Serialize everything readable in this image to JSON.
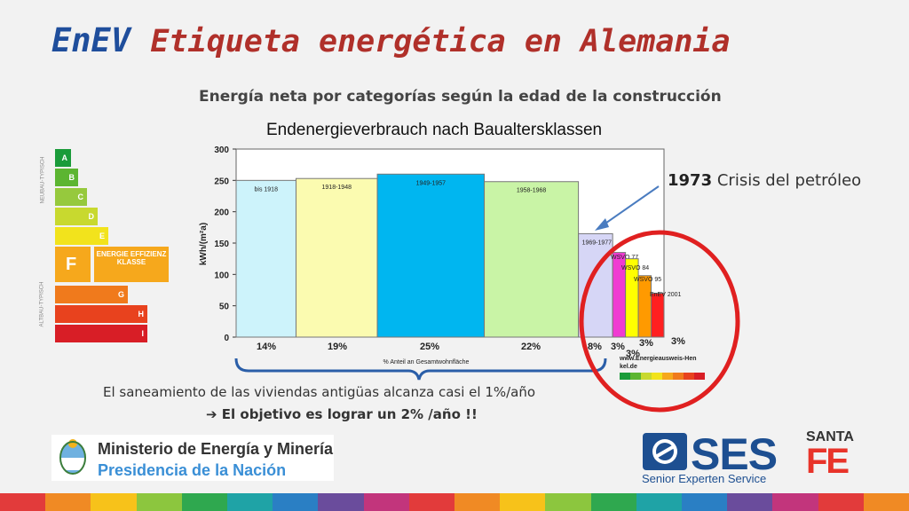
{
  "slide": {
    "title_part1": "EnEV",
    "title_part2": "Etiqueta energética en Alemania",
    "subtitle": "Energía neta por categorías según la edad de la construcción",
    "note_line1": "El saneamiento de las viviendas antigüas alcanza casi el 1%/año",
    "note_line2": "➔ El objetivo es lograr un 2% /año !!",
    "crisis_year": "1973",
    "crisis_text": "Crisis del petróleo"
  },
  "energy_label": {
    "classes": [
      "A",
      "B",
      "C",
      "D",
      "E",
      "F",
      "G",
      "H",
      "I"
    ],
    "colors": [
      "#1a9b3a",
      "#5cb531",
      "#96c93d",
      "#c8d92f",
      "#f2e31c",
      "#f6a81c",
      "#f07a1c",
      "#e8421e",
      "#d81e26"
    ],
    "caption": "ENERGIE EFFIZIENZ KLASSE",
    "side_top": "NEUBAU-TYPISCH",
    "side_bottom": "ALTBAU-TYPISCH"
  },
  "chart_data": {
    "type": "bar",
    "title": "Endenergieverbrauch nach Baualtersklassen",
    "ylabel": "kWh/(m²a)",
    "xlabel": "% Anteil an Gesamtwohnfläche",
    "ylim": [
      0,
      300
    ],
    "yticks": [
      0,
      50,
      100,
      150,
      200,
      250,
      300
    ],
    "bars": [
      {
        "label": "bis 1918",
        "value": 250,
        "share": 14,
        "share_label": "14%",
        "color": "#cdf3fb"
      },
      {
        "label": "1918-1948",
        "value": 253,
        "share": 19,
        "share_label": "19%",
        "color": "#fbfbb0"
      },
      {
        "label": "1949-1957",
        "value": 260,
        "share": 25,
        "share_label": "25%",
        "color": "#00b6f0"
      },
      {
        "label": "1958-1968",
        "value": 248,
        "share": 22,
        "share_label": "22%",
        "color": "#c9f4a6"
      },
      {
        "label": "1969-1977",
        "value": 165,
        "share": 8,
        "share_label": "8%",
        "color": "#d6d6f6"
      },
      {
        "label": "WSVO 77",
        "value": 135,
        "share": 3,
        "share_label": "3%",
        "color": "#f03bd2"
      },
      {
        "label": "WSVO 84",
        "value": 125,
        "share": 3,
        "share_label": "3%",
        "color": "#ffff00"
      },
      {
        "label": "WSVO 95",
        "value": 98,
        "share": 3,
        "share_label": "3%",
        "color": "#ff9a00"
      },
      {
        "label": "EnEV 2001",
        "value": 70,
        "share": 3,
        "share_label": "3%",
        "color": "#ff2020"
      }
    ],
    "source": "www.Energieausweis-Henkel.de"
  },
  "logos": {
    "ministerio_line1": "Ministerio de Energía y Minería",
    "ministerio_line2": "Presidencia de la Nación",
    "ses": "SES",
    "ses_sub": "Senior Experten Service",
    "santa": "SANTA",
    "fe": "FE"
  },
  "footer_stripes": [
    "#e23b3b",
    "#f08a24",
    "#f7c21a",
    "#8cc63e",
    "#2fa84f",
    "#1fa3a6",
    "#2a7fc4",
    "#6a4c9c",
    "#c2357c",
    "#e23b3b",
    "#f08a24",
    "#f7c21a",
    "#8cc63e",
    "#2fa84f",
    "#1fa3a6",
    "#2a7fc4",
    "#6a4c9c",
    "#c2357c",
    "#e23b3b",
    "#f08a24"
  ]
}
